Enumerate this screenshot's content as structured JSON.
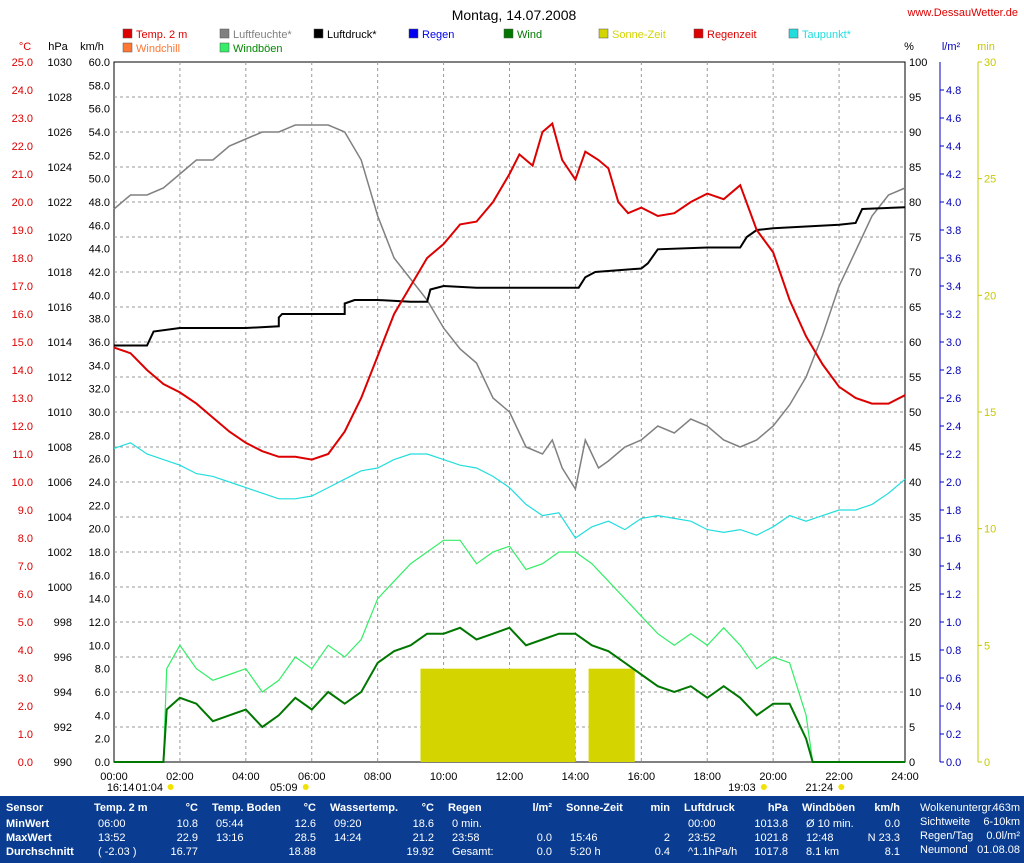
{
  "title": "Montag, 14.07.2008",
  "site": "www.DessauWetter.de",
  "legend": [
    {
      "label": "Temp. 2 m",
      "color": "#dd0000"
    },
    {
      "label": "Windchill",
      "color": "#ff7733"
    },
    {
      "label": "Luftfeuchte*",
      "color": "#808080"
    },
    {
      "label": "Windböen",
      "color": "#33ee66"
    },
    {
      "label": "Luftdruck*",
      "color": "#000000"
    },
    {
      "label": "Regen",
      "color": "#0000ee"
    },
    {
      "label": "Wind",
      "color": "#007700"
    },
    {
      "label": "Sonne-Zeit",
      "color": "#d4d400"
    },
    {
      "label": "Regenzeit",
      "color": "#dd0000"
    },
    {
      "label": "Taupunkt*",
      "color": "#22dddd"
    }
  ],
  "axes": {
    "temp": {
      "unit": "°C",
      "ticks": [
        "25.0",
        "24.0",
        "23.0",
        "22.0",
        "21.0",
        "20.0",
        "19.0",
        "18.0",
        "17.0",
        "16.0",
        "15.0",
        "14.0",
        "13.0",
        "12.0",
        "11.0",
        "10.0",
        "9.0",
        "8.0",
        "7.0",
        "6.0",
        "5.0",
        "4.0",
        "3.0",
        "2.0",
        "1.0",
        "0.0"
      ],
      "color": "#dd0000"
    },
    "pressure": {
      "unit": "hPa",
      "ticks": [
        "1030",
        "1028",
        "1026",
        "1024",
        "1022",
        "1020",
        "1018",
        "1016",
        "1014",
        "1012",
        "1010",
        "1008",
        "1006",
        "1004",
        "1002",
        "1000",
        "998",
        "996",
        "994",
        "992",
        "990"
      ],
      "color": "#000000"
    },
    "wind": {
      "unit": "km/h",
      "ticks": [
        "60.0",
        "58.0",
        "56.0",
        "54.0",
        "52.0",
        "50.0",
        "48.0",
        "46.0",
        "44.0",
        "42.0",
        "40.0",
        "38.0",
        "36.0",
        "34.0",
        "32.0",
        "30.0",
        "28.0",
        "26.0",
        "24.0",
        "22.0",
        "20.0",
        "18.0",
        "16.0",
        "14.0",
        "12.0",
        "10.0",
        "8.0",
        "6.0",
        "4.0",
        "2.0",
        "0.0"
      ],
      "color": "#000000"
    },
    "humidity": {
      "unit": "%",
      "ticks": [
        "100",
        "95",
        "90",
        "85",
        "80",
        "75",
        "70",
        "65",
        "60",
        "55",
        "50",
        "45",
        "40",
        "35",
        "30",
        "25",
        "20",
        "15",
        "10",
        "5",
        "0"
      ],
      "color": "#000000"
    },
    "rain": {
      "unit": "l/m²",
      "ticks": [
        "4.8",
        "4.6",
        "4.4",
        "4.2",
        "4.0",
        "3.8",
        "3.6",
        "3.4",
        "3.2",
        "3.0",
        "2.8",
        "2.6",
        "2.4",
        "2.2",
        "2.0",
        "1.8",
        "1.6",
        "1.4",
        "1.2",
        "1.0",
        "0.8",
        "0.6",
        "0.4",
        "0.2",
        "0.0"
      ],
      "color": "#0000bb"
    },
    "sun": {
      "unit": "min",
      "ticks": [
        "30",
        "25",
        "20",
        "15",
        "10",
        "5",
        "0"
      ],
      "color": "#c8c800"
    },
    "time": {
      "ticks": [
        "00:00",
        "02:00",
        "04:00",
        "06:00",
        "08:00",
        "10:00",
        "12:00",
        "14:00",
        "16:00",
        "18:00",
        "20:00",
        "22:00",
        "24:00"
      ]
    }
  },
  "astro": [
    {
      "label": "16:14",
      "hour": 0.2
    },
    {
      "label": "01:04",
      "hour": 1.07
    },
    {
      "label": "05:09",
      "hour": 5.15
    },
    {
      "label": "19:03",
      "hour": 19.05
    },
    {
      "label": "21:24",
      "hour": 21.4
    }
  ],
  "chart_data": {
    "type": "line",
    "title": "Montag, 14.07.2008",
    "x_range": [
      "00:00",
      "24:00"
    ],
    "series": [
      {
        "name": "Temp. 2 m",
        "axis": "°C",
        "x": [
          0,
          0.5,
          1,
          1.5,
          2,
          2.5,
          3,
          3.5,
          4,
          4.5,
          5,
          5.5,
          6,
          6.5,
          7,
          7.5,
          8,
          8.5,
          9,
          9.5,
          10,
          10.5,
          11,
          11.5,
          12,
          12.3,
          12.7,
          13,
          13.3,
          13.6,
          14,
          14.3,
          14.7,
          15,
          15.3,
          15.6,
          16,
          16.5,
          17,
          17.5,
          18,
          18.5,
          19,
          19.5,
          20,
          20.5,
          21,
          21.5,
          22,
          22.5,
          23,
          23.5,
          24
        ],
        "y": [
          14.8,
          14.6,
          14.0,
          13.5,
          13.2,
          12.8,
          12.3,
          11.8,
          11.4,
          11.1,
          10.9,
          10.9,
          10.8,
          11.0,
          11.8,
          13.0,
          14.5,
          16.0,
          17.0,
          18.0,
          18.5,
          19.2,
          19.3,
          20.0,
          21.0,
          21.7,
          21.3,
          22.5,
          22.8,
          21.5,
          20.8,
          21.8,
          21.5,
          21.2,
          20.0,
          19.6,
          19.8,
          19.5,
          19.6,
          20.0,
          20.3,
          20.1,
          20.6,
          19.0,
          18.2,
          16.5,
          15.2,
          14.2,
          13.4,
          13.0,
          12.8,
          12.8,
          13.1
        ]
      },
      {
        "name": "Luftfeuchte*",
        "axis": "%",
        "x": [
          0,
          0.5,
          1,
          1.5,
          2,
          2.5,
          3,
          3.5,
          4,
          4.5,
          5,
          5.5,
          6,
          6.5,
          7,
          7.5,
          8,
          8.5,
          9,
          9.5,
          10,
          10.5,
          11,
          11.5,
          12,
          12.5,
          13,
          13.3,
          13.6,
          14,
          14.3,
          14.7,
          15,
          15.5,
          16,
          16.5,
          17,
          17.5,
          18,
          18.5,
          19,
          19.5,
          20,
          20.5,
          21,
          21.5,
          22,
          22.5,
          23,
          23.5,
          24
        ],
        "y": [
          79,
          81,
          81,
          82,
          84,
          86,
          86,
          88,
          89,
          90,
          90,
          91,
          91,
          91,
          90,
          86,
          78,
          72,
          69,
          66,
          62,
          59,
          57,
          52,
          50,
          45,
          44,
          46,
          42,
          39,
          46,
          42,
          43,
          45,
          46,
          48,
          47,
          49,
          48,
          46,
          45,
          46,
          48,
          51,
          55,
          61,
          68,
          73,
          78,
          81,
          82
        ]
      },
      {
        "name": "Luftdruck*",
        "axis": "hPa",
        "x": [
          0,
          1,
          1.2,
          2,
          3,
          4,
          5,
          5,
          5.1,
          6,
          7,
          7,
          7.3,
          8,
          9,
          9.5,
          9.6,
          10,
          11,
          12,
          13,
          14,
          14.1,
          14.3,
          14.6,
          16,
          16.2,
          16.5,
          18,
          19,
          19.2,
          19.5,
          20,
          21,
          22,
          22.5,
          22.7,
          24
        ],
        "y": [
          1013.8,
          1013.8,
          1014.6,
          1014.8,
          1014.8,
          1014.8,
          1014.9,
          1015.4,
          1015.6,
          1015.6,
          1015.6,
          1016.2,
          1016.4,
          1016.4,
          1016.3,
          1016.3,
          1017.0,
          1017.2,
          1017.1,
          1017.1,
          1017.1,
          1017.1,
          1017.1,
          1017.7,
          1018.0,
          1018.2,
          1018.5,
          1019.3,
          1019.4,
          1019.4,
          1020.0,
          1020.4,
          1020.5,
          1020.6,
          1020.7,
          1020.8,
          1021.6,
          1021.7
        ]
      },
      {
        "name": "Taupunkt*",
        "axis": "°C",
        "x": [
          0,
          0.5,
          1,
          1.5,
          2,
          2.5,
          3,
          3.5,
          4,
          4.5,
          5,
          5.5,
          6,
          6.5,
          7,
          7.5,
          8,
          8.5,
          9,
          9.5,
          10,
          10.5,
          11,
          11.5,
          12,
          12.5,
          13,
          13.5,
          14,
          14.5,
          15,
          15.5,
          16,
          16.5,
          17,
          17.5,
          18,
          18.5,
          19,
          19.5,
          20,
          20.5,
          21,
          21.5,
          22,
          22.5,
          23,
          23.5,
          24
        ],
        "y": [
          11.2,
          11.4,
          11.0,
          10.8,
          10.6,
          10.3,
          10.2,
          10.0,
          9.8,
          9.6,
          9.4,
          9.4,
          9.5,
          9.8,
          10.1,
          10.4,
          10.5,
          10.8,
          11.0,
          11.0,
          10.8,
          10.6,
          10.5,
          10.2,
          9.8,
          9.2,
          8.8,
          8.9,
          8.0,
          8.4,
          8.6,
          8.3,
          8.7,
          8.8,
          8.7,
          8.6,
          8.3,
          8.2,
          8.3,
          8.1,
          8.4,
          8.8,
          8.6,
          8.8,
          9.0,
          9.0,
          9.2,
          9.6,
          10.1
        ]
      },
      {
        "name": "Wind",
        "axis": "km/h",
        "x": [
          0,
          1.5,
          1.6,
          2,
          2.5,
          3,
          3.5,
          4,
          4.5,
          5,
          5.5,
          6,
          6.5,
          7,
          7.5,
          8,
          8.5,
          9,
          9.5,
          10,
          10.5,
          11,
          11.5,
          12,
          12.5,
          13,
          13.5,
          14,
          14.5,
          15,
          15.5,
          16,
          16.5,
          17,
          17.5,
          18,
          18.5,
          19,
          19.5,
          20,
          20.5,
          21,
          21.2,
          24
        ],
        "y": [
          0,
          0,
          4.5,
          5.5,
          5.0,
          3.5,
          4.0,
          4.5,
          3.0,
          4.0,
          5.5,
          4.5,
          6.0,
          5.0,
          6.0,
          8.5,
          9.5,
          10.0,
          11.0,
          11.0,
          11.5,
          10.5,
          11.0,
          11.5,
          10.0,
          10.5,
          11.0,
          11.0,
          10.0,
          9.5,
          8.5,
          7.5,
          6.5,
          6.0,
          6.5,
          5.5,
          6.5,
          5.5,
          4.0,
          5.0,
          5.0,
          2.0,
          0,
          0
        ]
      },
      {
        "name": "Windböen",
        "axis": "km/h",
        "x": [
          0,
          1.5,
          1.6,
          2,
          2.5,
          3,
          3.5,
          4,
          4.5,
          5,
          5.5,
          6,
          6.5,
          7,
          7.5,
          8,
          8.5,
          9,
          9.5,
          10,
          10.5,
          11,
          11.5,
          12,
          12.5,
          13,
          13.5,
          14,
          14.5,
          15,
          15.5,
          16,
          16.5,
          17,
          17.5,
          18,
          18.5,
          19,
          19.5,
          20,
          20.5,
          21,
          21.2,
          24
        ],
        "y": [
          0,
          0,
          8.0,
          10.0,
          8.0,
          7.0,
          7.5,
          8.0,
          6.0,
          7.0,
          9.0,
          8.0,
          10.0,
          9.0,
          10.5,
          14.0,
          15.5,
          17.0,
          18.0,
          19.0,
          19.0,
          17.0,
          18.0,
          18.5,
          16.5,
          17.0,
          18.0,
          18.0,
          17.0,
          15.5,
          14.0,
          12.5,
          11.0,
          10.0,
          11.0,
          10.0,
          11.5,
          10.0,
          8.0,
          9.0,
          8.5,
          4.0,
          0,
          0
        ]
      },
      {
        "name": "Sonne-Zeit",
        "axis": "min",
        "x": [
          9.3,
          14.0,
          14.4,
          15.8
        ],
        "y": [
          4,
          4,
          4,
          4
        ]
      }
    ]
  },
  "table": {
    "cols": [
      {
        "h1": "Sensor",
        "h2": "",
        "rows": [
          [
            "MinWert",
            ""
          ],
          [
            "MaxWert",
            ""
          ],
          [
            "Durchschnitt",
            ""
          ]
        ]
      },
      {
        "h1": "Temp. 2 m",
        "h2": "°C",
        "rows": [
          [
            "06:00",
            "10.8"
          ],
          [
            "13:52",
            "22.9"
          ],
          [
            "( -2.03 )",
            "16.77"
          ]
        ]
      },
      {
        "h1": "Temp. Boden",
        "h2": "°C",
        "rows": [
          [
            "05:44",
            "12.6"
          ],
          [
            "13:16",
            "28.5"
          ],
          [
            "",
            "18.88"
          ]
        ]
      },
      {
        "h1": "Wassertemp.",
        "h2": "°C",
        "rows": [
          [
            "09:20",
            "18.6"
          ],
          [
            "14:24",
            "21.2"
          ],
          [
            "",
            "19.92"
          ]
        ]
      },
      {
        "h1": "Regen",
        "h2": "l/m²",
        "rows": [
          [
            "0 min.",
            ""
          ],
          [
            "23:58",
            "0.0"
          ],
          [
            "Gesamt:",
            "0.0"
          ]
        ]
      },
      {
        "h1": "Sonne-Zeit",
        "h2": "min",
        "rows": [
          [
            "",
            ""
          ],
          [
            "15:46",
            "2"
          ],
          [
            "5:20 h",
            "0.4"
          ]
        ]
      },
      {
        "h1": "Luftdruck",
        "h2": "hPa",
        "rows": [
          [
            "00:00",
            "1013.8"
          ],
          [
            "23:52",
            "1021.8"
          ],
          [
            "^1.1hPa/h",
            "1017.8"
          ]
        ]
      },
      {
        "h1": "Windböen",
        "h2": "km/h",
        "rows": [
          [
            "Ø 10 min.",
            "0.0"
          ],
          [
            "12:48",
            "N 23.3"
          ],
          [
            "8.1 km",
            "8.1"
          ]
        ]
      }
    ],
    "extra": [
      [
        "Wolkenuntergr.",
        "463m"
      ],
      [
        "Sichtweite",
        "6-10km"
      ],
      [
        "Regen/Tag",
        "0.0l/m²"
      ],
      [
        "Neumond",
        "01.08.08"
      ]
    ]
  }
}
